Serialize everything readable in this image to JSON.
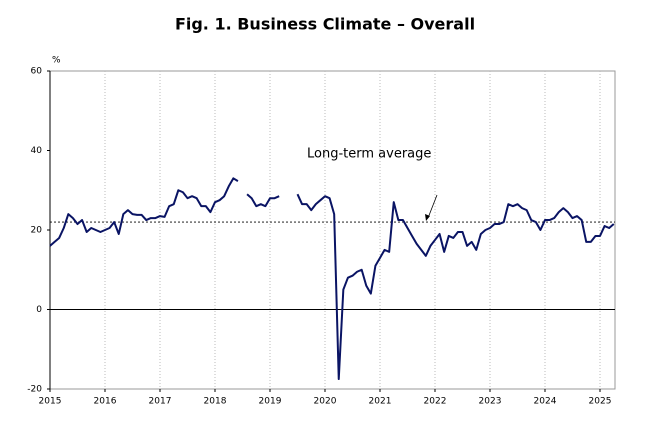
{
  "chart_data": {
    "type": "line",
    "title": "Fig. 1. Business Climate – Overall",
    "y_label": "%",
    "categories": [
      "2015",
      null,
      null,
      null,
      null,
      null,
      null,
      null,
      null,
      null,
      null,
      null,
      "2016",
      null,
      null,
      null,
      null,
      null,
      null,
      null,
      null,
      null,
      null,
      null,
      "2017",
      null,
      null,
      null,
      null,
      null,
      null,
      null,
      null,
      null,
      null,
      null,
      "2018",
      null,
      null,
      null,
      null,
      null,
      null,
      null,
      null,
      null,
      null,
      null,
      "2019",
      null,
      null,
      null,
      null,
      null,
      null,
      null,
      null,
      null,
      null,
      null,
      "2020",
      null,
      null,
      null,
      null,
      null,
      null,
      null,
      null,
      null,
      null,
      null,
      "2021",
      null,
      null,
      null,
      null,
      null,
      null,
      null,
      null,
      null,
      null,
      null,
      "2022",
      null,
      null,
      null,
      null,
      null,
      null,
      null,
      null,
      null,
      null,
      null,
      "2023",
      null,
      null,
      null,
      null,
      null,
      null,
      null,
      null,
      null,
      null,
      null,
      "2024",
      null,
      null,
      null,
      null,
      null,
      null,
      null,
      null,
      null,
      null,
      null,
      "2025",
      null,
      null,
      null
    ],
    "values": [
      16,
      17,
      18,
      20.5,
      24,
      23,
      21.5,
      22.5,
      19.5,
      20.5,
      20,
      19.5,
      20,
      20.5,
      22,
      19,
      24,
      25,
      24,
      23.8,
      23.8,
      22.5,
      23,
      23,
      23.5,
      23.3,
      26,
      26.5,
      30,
      29.5,
      28,
      28.5,
      28,
      26,
      26,
      24.5,
      27,
      27.5,
      28.5,
      31,
      33,
      32.3,
      null,
      29,
      28,
      26,
      26.5,
      26,
      28,
      28,
      28.5,
      null,
      null,
      null,
      29,
      26.5,
      26.5,
      25,
      26.5,
      27.5,
      28.5,
      28,
      24,
      -17.5,
      5,
      8,
      8.5,
      9.5,
      10,
      6,
      4,
      11,
      13,
      15,
      14.5,
      27,
      22.5,
      22.5,
      20.5,
      18.5,
      16.5,
      15,
      13.5,
      16,
      17.5,
      19,
      14.5,
      18.5,
      18,
      19.5,
      19.5,
      16,
      17,
      15,
      19,
      20,
      20.5,
      21.5,
      21.5,
      22,
      26.5,
      26,
      26.5,
      25.5,
      25,
      22.5,
      22,
      20,
      22.5,
      22.5,
      23,
      24.5,
      25.5,
      24.5,
      23,
      23.5,
      22.5,
      17,
      17,
      18.5,
      18.5,
      21,
      20.5,
      21.5
    ],
    "color": "#0a1464",
    "reference_line": {
      "label": "Long-term average",
      "value": 22
    },
    "ylim": [
      -20,
      60
    ],
    "yticks": [
      -20,
      0,
      20,
      40,
      60
    ],
    "grid": true
  }
}
